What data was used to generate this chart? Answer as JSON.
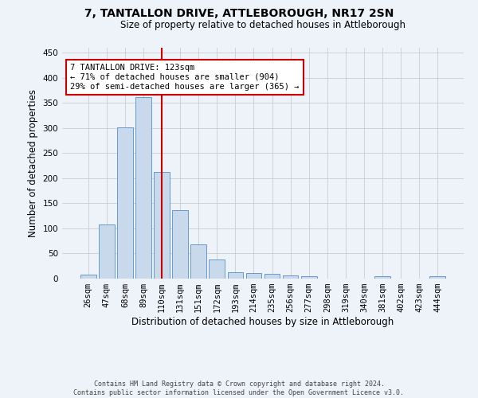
{
  "title": "7, TANTALLON DRIVE, ATTLEBOROUGH, NR17 2SN",
  "subtitle": "Size of property relative to detached houses in Attleborough",
  "xlabel": "Distribution of detached houses by size in Attleborough",
  "ylabel": "Number of detached properties",
  "footer_line1": "Contains HM Land Registry data © Crown copyright and database right 2024.",
  "footer_line2": "Contains public sector information licensed under the Open Government Licence v3.0.",
  "bar_labels": [
    "26sqm",
    "47sqm",
    "68sqm",
    "89sqm",
    "110sqm",
    "131sqm",
    "151sqm",
    "172sqm",
    "193sqm",
    "214sqm",
    "235sqm",
    "256sqm",
    "277sqm",
    "298sqm",
    "319sqm",
    "340sqm",
    "381sqm",
    "402sqm",
    "423sqm",
    "444sqm"
  ],
  "bar_values": [
    8,
    108,
    302,
    362,
    213,
    137,
    69,
    38,
    13,
    11,
    10,
    6,
    4,
    0,
    0,
    0,
    4,
    0,
    0,
    4
  ],
  "bar_color": "#c9d9ec",
  "bar_edge_color": "#6699cc",
  "background_color": "#eef2f9",
  "grid_color": "#cccccc",
  "annotation_text": "7 TANTALLON DRIVE: 123sqm\n← 71% of detached houses are smaller (904)\n29% of semi-detached houses are larger (365) →",
  "vline_color": "#cc0000",
  "annotation_box_color": "#ffffff",
  "annotation_box_edge": "#cc0000",
  "ylim": [
    0,
    460
  ],
  "yticks": [
    0,
    50,
    100,
    150,
    200,
    250,
    300,
    350,
    400,
    450
  ],
  "title_fontsize": 10,
  "subtitle_fontsize": 8.5,
  "ylabel_fontsize": 8.5,
  "xlabel_fontsize": 8.5,
  "tick_fontsize": 7.5,
  "annotation_fontsize": 7.5,
  "footer_fontsize": 6
}
